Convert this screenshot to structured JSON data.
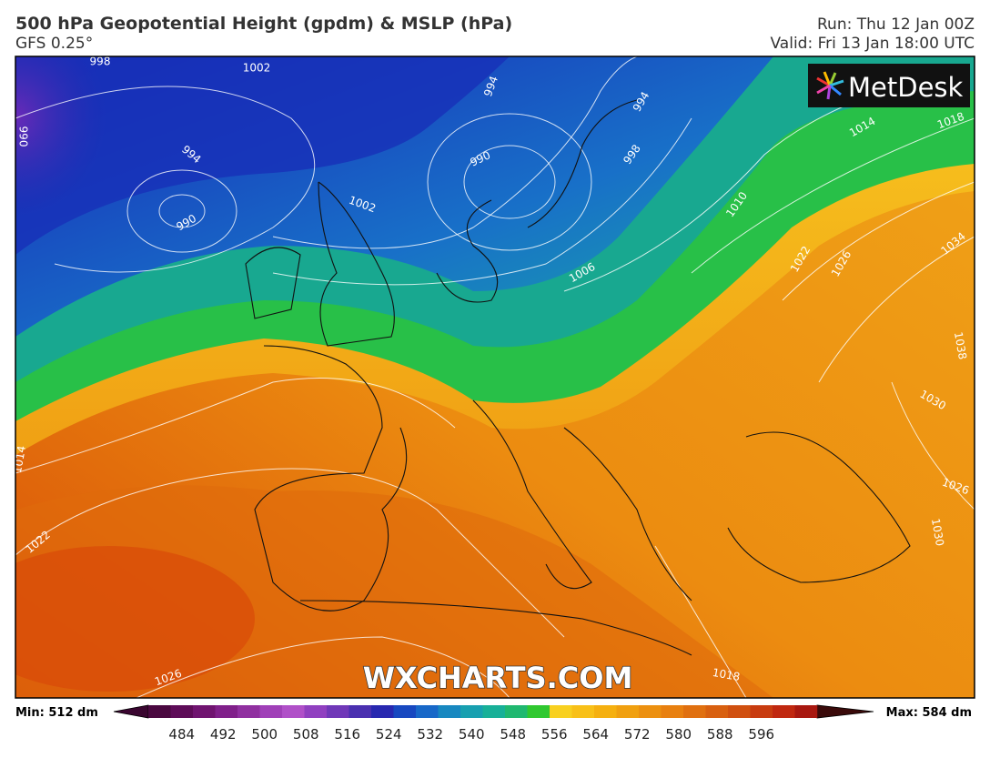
{
  "header": {
    "title": "500 hPa Geopotential Height (gpdm) & MSLP (hPa)",
    "model": "GFS 0.25°",
    "run": "Run: Thu 12 Jan 00Z",
    "valid": "Valid: Fri 13 Jan 18:00 UTC"
  },
  "logo": "MetDesk",
  "watermark": "WXCHARTS.COM",
  "isobar_labels": [
    "998",
    "1002",
    "994",
    "990",
    "994",
    "990",
    "990",
    "994",
    "998",
    "1002",
    "1006",
    "1010",
    "1014",
    "1018",
    "1022",
    "1026",
    "1034",
    "1038",
    "1030",
    "1026",
    "1030",
    "1014",
    "1022",
    "1026",
    "1018"
  ],
  "colorbar": {
    "min_label": "Min: 512 dm",
    "max_label": "Max: 584 dm",
    "ticks": [
      484,
      492,
      500,
      508,
      516,
      524,
      532,
      540,
      548,
      556,
      564,
      572,
      580,
      588,
      596
    ],
    "colors": [
      "#4a0840",
      "#5e0c58",
      "#701470",
      "#80208a",
      "#9030a0",
      "#a040b8",
      "#b050c8",
      "#9040c0",
      "#7038b8",
      "#4a30b0",
      "#2828b0",
      "#1848c0",
      "#1868c8",
      "#1888c0",
      "#18a0b0",
      "#18b098",
      "#20b870",
      "#30c830",
      "#f8d020",
      "#f8c018",
      "#f5b010",
      "#f0a010",
      "#ec9010",
      "#e88010",
      "#e07010",
      "#d86010",
      "#d05010",
      "#c83c10",
      "#c02810",
      "#a81810"
    ]
  }
}
